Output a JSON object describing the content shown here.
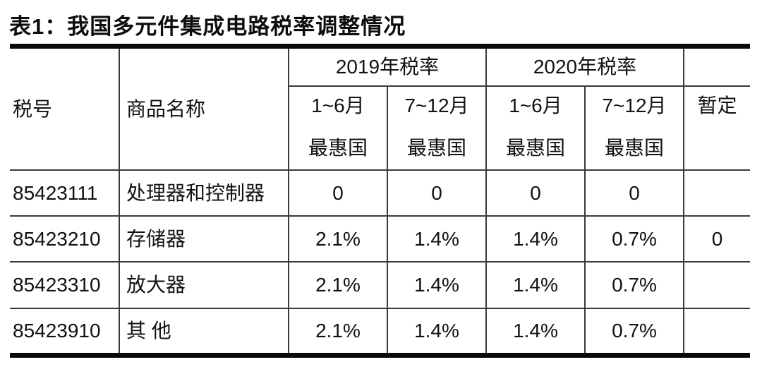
{
  "title": "表1：我国多元件集成电路税率调整情况",
  "table": {
    "corner_headers": {
      "tax_no": "税号",
      "product_name": "商品名称"
    },
    "year_groups": [
      {
        "label": "2019年税率"
      },
      {
        "label": "2020年税率"
      }
    ],
    "sub_headers": [
      {
        "period": "1~6月",
        "type": "最惠国"
      },
      {
        "period": "7~12月",
        "type": "最惠国"
      },
      {
        "period": "1~6月",
        "type": "最惠国"
      },
      {
        "period": "7~12月",
        "type": "最惠国"
      },
      {
        "period": "暂定",
        "type": ""
      }
    ],
    "rows": [
      {
        "tax_no": "85423111",
        "name": "处理器和控制器",
        "r2019_h1": "0",
        "r2019_h2": "0",
        "r2020_h1": "0",
        "r2020_h2": "0",
        "provisional": ""
      },
      {
        "tax_no": "85423210",
        "name": "存储器",
        "r2019_h1": "2.1%",
        "r2019_h2": "1.4%",
        "r2020_h1": "1.4%",
        "r2020_h2": "0.7%",
        "provisional": "0"
      },
      {
        "tax_no": "85423310",
        "name": "放大器",
        "r2019_h1": "2.1%",
        "r2019_h2": "1.4%",
        "r2020_h1": "1.4%",
        "r2020_h2": "0.7%",
        "provisional": ""
      },
      {
        "tax_no": "85423910",
        "name": "其 他",
        "r2019_h1": "2.1%",
        "r2019_h2": "1.4%",
        "r2020_h1": "1.4%",
        "r2020_h2": "0.7%",
        "provisional": ""
      }
    ]
  }
}
